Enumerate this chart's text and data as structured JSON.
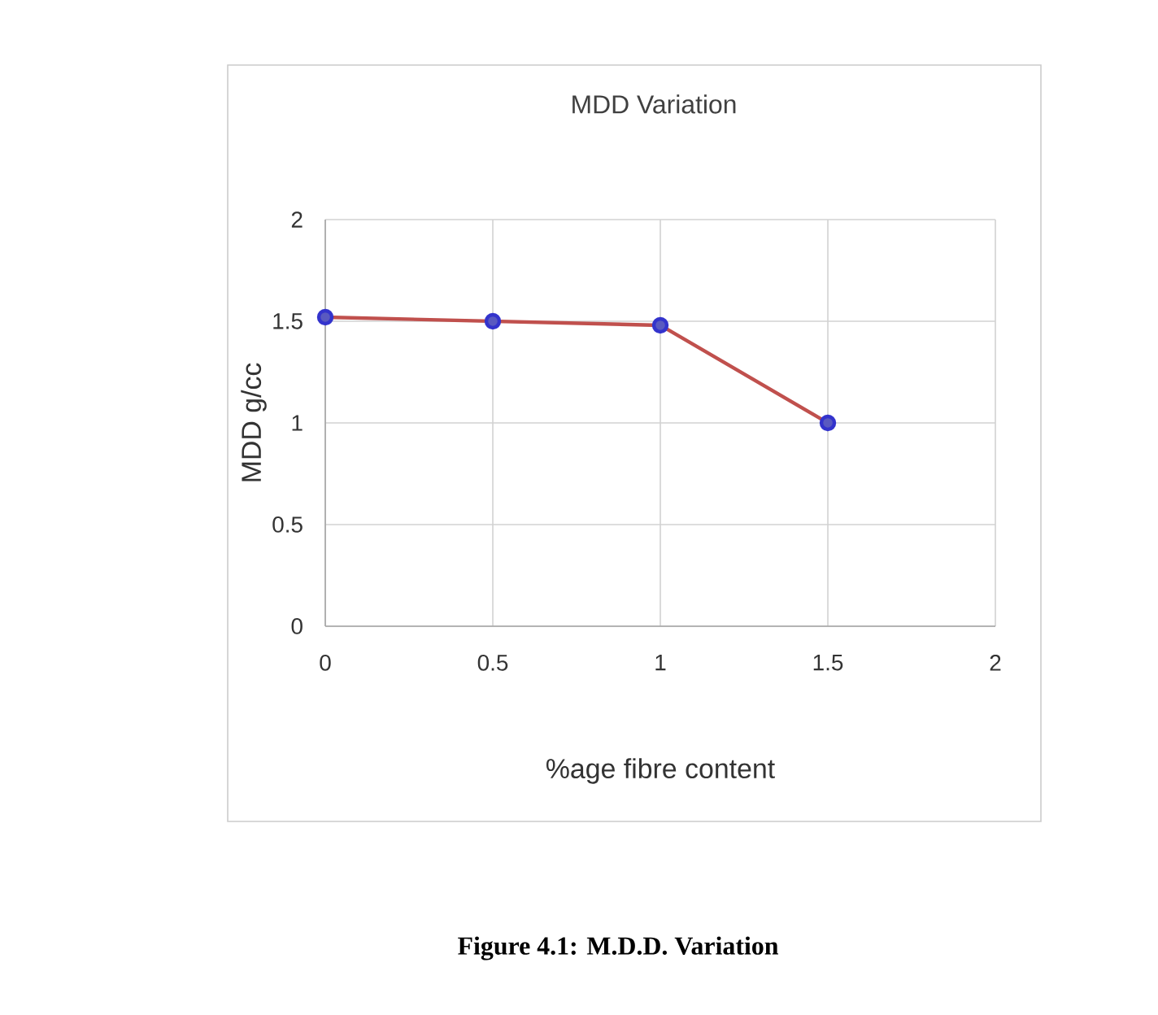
{
  "chart_data": {
    "type": "line",
    "title": "MDD Variation",
    "xlabel": "%age  fibre content",
    "ylabel": "MDD  g/cc",
    "x": [
      0,
      0.5,
      1,
      1.5
    ],
    "series": [
      {
        "color": "#c0504d",
        "values": [
          1.52,
          1.5,
          1.48,
          1.0
        ]
      }
    ],
    "marker": "circle",
    "line_style": "solid",
    "xlim": [
      0,
      2
    ],
    "xticks": [
      0,
      0.5,
      1,
      1.5,
      2
    ],
    "ylim": [
      0,
      2
    ],
    "yticks": [
      0,
      0.5,
      1,
      1.5,
      2
    ],
    "grid": true,
    "annotations": [
      "**Figure 4.1: M.D.D. Variation**"
    ]
  }
}
